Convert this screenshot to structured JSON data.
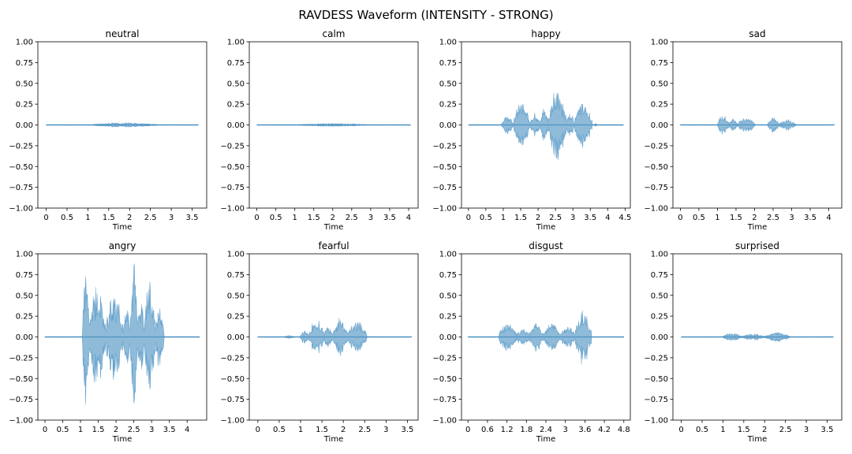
{
  "figure": {
    "title": "RAVDESS Waveform (INTENSITY -  STRONG)",
    "wave_color": "#1f77b4"
  },
  "chart_data": [
    {
      "type": "area",
      "title": "neutral",
      "xlabel": "Time",
      "xlim": [
        -0.2,
        3.85
      ],
      "ylim": [
        -1.0,
        1.0
      ],
      "xticks": [
        0,
        0.5,
        1,
        1.5,
        2,
        2.5,
        3,
        3.5
      ],
      "xtick_labels": [
        "0",
        "0.5",
        "1",
        "1.5",
        "2",
        "2.5",
        "3",
        "3.5"
      ],
      "yticks": [
        -1.0,
        -0.75,
        -0.5,
        -0.25,
        0.0,
        0.25,
        0.5,
        0.75,
        1.0
      ],
      "ytick_labels": [
        "−1.00",
        "−0.75",
        "−0.50",
        "−0.25",
        "0.00",
        "0.25",
        "0.50",
        "0.75",
        "1.00"
      ],
      "duration": 3.65,
      "bursts": [
        [
          1.1,
          2.65,
          0.03
        ]
      ]
    },
    {
      "type": "area",
      "title": "calm",
      "xlabel": "Time",
      "xlim": [
        -0.2,
        4.25
      ],
      "ylim": [
        -1.0,
        1.0
      ],
      "xticks": [
        0,
        0.5,
        1,
        1.5,
        2,
        2.5,
        3,
        3.5,
        4
      ],
      "xtick_labels": [
        "0",
        "0.5",
        "1",
        "1.5",
        "2",
        "2.5",
        "3",
        "3.5",
        "4"
      ],
      "yticks": [
        -1.0,
        -0.75,
        -0.5,
        -0.25,
        0.0,
        0.25,
        0.5,
        0.75,
        1.0
      ],
      "ytick_labels": [
        "−1.00",
        "−0.75",
        "−0.50",
        "−0.25",
        "0.00",
        "0.25",
        "0.50",
        "0.75",
        "1.00"
      ],
      "duration": 4.05,
      "bursts": [
        [
          1.05,
          2.95,
          0.02
        ]
      ]
    },
    {
      "type": "area",
      "title": "happy",
      "xlabel": "Time",
      "xlim": [
        -0.2,
        4.65
      ],
      "ylim": [
        -1.0,
        1.0
      ],
      "xticks": [
        0,
        0.5,
        1,
        1.5,
        2,
        2.5,
        3,
        3.5,
        4,
        4.5
      ],
      "xtick_labels": [
        "0",
        "0.5",
        "1",
        "1.5",
        "2",
        "2.5",
        "3",
        "3.5",
        "4",
        "4.5"
      ],
      "yticks": [
        -1.0,
        -0.75,
        -0.5,
        -0.25,
        0.0,
        0.25,
        0.5,
        0.75,
        1.0
      ],
      "ytick_labels": [
        "−1.00",
        "−0.75",
        "−0.50",
        "−0.25",
        "0.00",
        "0.25",
        "0.50",
        "0.75",
        "1.00"
      ],
      "duration": 4.45,
      "bursts": [
        [
          0.95,
          1.3,
          0.12
        ],
        [
          1.3,
          1.75,
          0.3
        ],
        [
          1.75,
          2.05,
          0.15
        ],
        [
          2.05,
          2.3,
          0.22
        ],
        [
          2.3,
          2.8,
          0.47
        ],
        [
          2.8,
          3.05,
          0.15
        ],
        [
          3.05,
          3.55,
          0.3
        ],
        [
          3.6,
          3.7,
          0.02
        ]
      ]
    },
    {
      "type": "area",
      "title": "sad",
      "xlabel": "Time",
      "xlim": [
        -0.2,
        4.35
      ],
      "ylim": [
        -1.0,
        1.0
      ],
      "xticks": [
        0,
        0.5,
        1,
        1.5,
        2,
        2.5,
        3,
        3.5,
        4
      ],
      "xtick_labels": [
        "0",
        "0.5",
        "1",
        "1.5",
        "2",
        "2.5",
        "3",
        "3.5",
        "4"
      ],
      "yticks": [
        -1.0,
        -0.75,
        -0.5,
        -0.25,
        0.0,
        0.25,
        0.5,
        0.75,
        1.0
      ],
      "ytick_labels": [
        "−1.00",
        "−0.75",
        "−0.50",
        "−0.25",
        "0.00",
        "0.25",
        "0.50",
        "0.75",
        "1.00"
      ],
      "duration": 4.15,
      "bursts": [
        [
          1.0,
          1.3,
          0.13
        ],
        [
          1.3,
          1.55,
          0.08
        ],
        [
          1.55,
          2.0,
          0.1
        ],
        [
          2.35,
          2.65,
          0.1
        ],
        [
          2.65,
          3.1,
          0.07
        ]
      ]
    },
    {
      "type": "area",
      "title": "angry",
      "xlabel": "Time",
      "xlim": [
        -0.2,
        4.55
      ],
      "ylim": [
        -1.0,
        1.0
      ],
      "xticks": [
        0,
        0.5,
        1,
        1.5,
        2,
        2.5,
        3,
        3.5,
        4
      ],
      "xtick_labels": [
        "0",
        "0.5",
        "1",
        "1.5",
        "2",
        "2.5",
        "3",
        "3.5",
        "4"
      ],
      "yticks": [
        -1.0,
        -0.75,
        -0.5,
        -0.25,
        0.0,
        0.25,
        0.5,
        0.75,
        1.0
      ],
      "ytick_labels": [
        "−1.00",
        "−0.75",
        "−0.50",
        "−0.25",
        "0.00",
        "0.25",
        "0.50",
        "0.75",
        "1.00"
      ],
      "duration": 4.35,
      "bursts": [
        [
          1.05,
          1.25,
          0.87
        ],
        [
          1.25,
          1.7,
          0.65
        ],
        [
          1.7,
          2.2,
          0.55
        ],
        [
          2.2,
          2.4,
          0.4
        ],
        [
          2.4,
          2.6,
          0.99
        ],
        [
          2.6,
          2.8,
          0.5
        ],
        [
          2.8,
          3.1,
          0.75
        ],
        [
          3.1,
          3.35,
          0.45
        ]
      ]
    },
    {
      "type": "area",
      "title": "fearful",
      "xlabel": "Time",
      "xlim": [
        -0.2,
        3.75
      ],
      "ylim": [
        -1.0,
        1.0
      ],
      "xticks": [
        0,
        0.5,
        1,
        1.5,
        2,
        2.5,
        3,
        3.5
      ],
      "xtick_labels": [
        "0",
        "0.5",
        "1",
        "1.5",
        "2",
        "2.5",
        "3",
        "3.5"
      ],
      "yticks": [
        -1.0,
        -0.75,
        -0.5,
        -0.25,
        0.0,
        0.25,
        0.5,
        0.75,
        1.0
      ],
      "ytick_labels": [
        "−1.00",
        "−0.75",
        "−0.50",
        "−0.25",
        "0.00",
        "0.25",
        "0.50",
        "0.75",
        "1.00"
      ],
      "duration": 3.6,
      "bursts": [
        [
          0.6,
          0.85,
          0.02
        ],
        [
          1.0,
          1.2,
          0.1
        ],
        [
          1.2,
          1.55,
          0.25
        ],
        [
          1.55,
          1.75,
          0.15
        ],
        [
          1.75,
          2.1,
          0.25
        ],
        [
          2.1,
          2.55,
          0.2
        ]
      ]
    },
    {
      "type": "area",
      "title": "disgust",
      "xlabel": "Time",
      "xlim": [
        -0.2,
        5.0
      ],
      "ylim": [
        -1.0,
        1.0
      ],
      "xticks": [
        0,
        0.6,
        1.2,
        1.8,
        2.4,
        3.0,
        3.6,
        4.2,
        4.8
      ],
      "xtick_labels": [
        "0",
        "0.6",
        "1.2",
        "1.8",
        "2.4",
        "3",
        "3.6",
        "4.2",
        "4.8"
      ],
      "yticks": [
        -1.0,
        -0.75,
        -0.5,
        -0.25,
        0.0,
        0.25,
        0.5,
        0.75,
        1.0
      ],
      "ytick_labels": [
        "−1.00",
        "−0.75",
        "−0.50",
        "−0.25",
        "0.00",
        "0.25",
        "0.50",
        "0.75",
        "1.00"
      ],
      "duration": 4.8,
      "bursts": [
        [
          0.95,
          1.5,
          0.2
        ],
        [
          1.5,
          1.9,
          0.12
        ],
        [
          1.9,
          2.3,
          0.2
        ],
        [
          2.3,
          2.85,
          0.18
        ],
        [
          2.85,
          3.3,
          0.15
        ],
        [
          3.3,
          3.8,
          0.35
        ]
      ]
    },
    {
      "type": "area",
      "title": "surprised",
      "xlabel": "Time",
      "xlim": [
        -0.2,
        3.85
      ],
      "ylim": [
        -1.0,
        1.0
      ],
      "xticks": [
        0,
        0.5,
        1,
        1.5,
        2,
        2.5,
        3,
        3.5
      ],
      "xtick_labels": [
        "0",
        "0.5",
        "1",
        "1.5",
        "2",
        "2.5",
        "3",
        "3.5"
      ],
      "yticks": [
        -1.0,
        -0.75,
        -0.5,
        -0.25,
        0.0,
        0.25,
        0.5,
        0.75,
        1.0
      ],
      "ytick_labels": [
        "−1.00",
        "−0.75",
        "−0.50",
        "−0.25",
        "0.00",
        "0.25",
        "0.50",
        "0.75",
        "1.00"
      ],
      "duration": 3.65,
      "bursts": [
        [
          1.0,
          1.45,
          0.05
        ],
        [
          1.45,
          2.0,
          0.04
        ],
        [
          2.0,
          2.6,
          0.06
        ]
      ]
    }
  ]
}
